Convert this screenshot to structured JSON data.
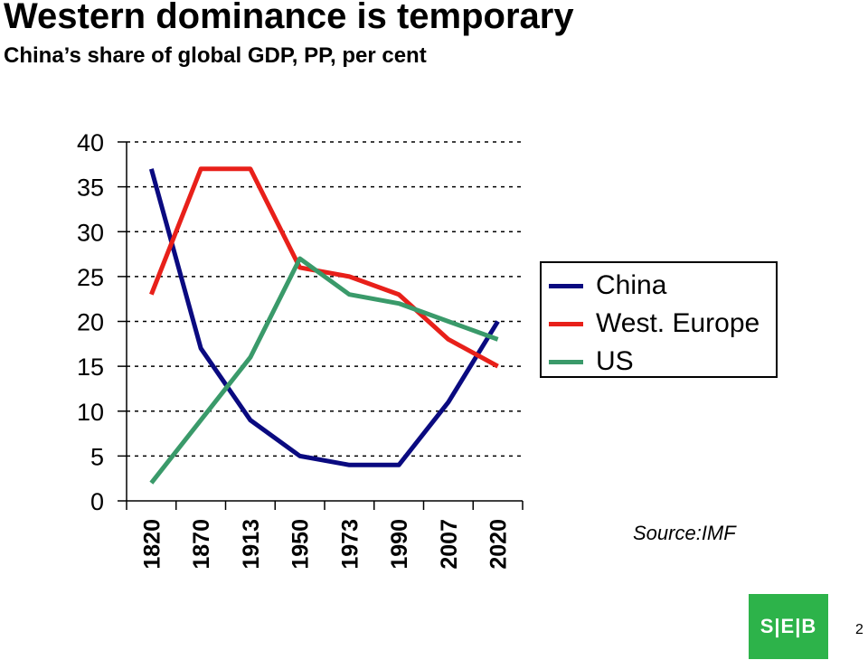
{
  "slide": {
    "title": "Western dominance is temporary",
    "subtitle": "China’s share of global GDP, PP, per cent",
    "source": "Source:IMF",
    "logo_text": "S|E|B",
    "page_number": "2",
    "logo_color": "#2db34a"
  },
  "chart_data": {
    "type": "line",
    "title": "",
    "xlabel": "",
    "ylabel": "",
    "categories": [
      "1820",
      "1870",
      "1913",
      "1950",
      "1973",
      "1990",
      "2007",
      "2020"
    ],
    "ylim": [
      0,
      40
    ],
    "yticks": [
      0,
      5,
      10,
      15,
      20,
      25,
      30,
      35,
      40
    ],
    "grid": "horizontal dashed",
    "legend_position": "right",
    "series": [
      {
        "name": "China",
        "color": "#0a0a80",
        "values": [
          37,
          17,
          9,
          5,
          4,
          4,
          11,
          20
        ]
      },
      {
        "name": "West. Europe",
        "color": "#e8201a",
        "values": [
          23,
          37,
          37,
          26,
          25,
          23,
          18,
          15
        ]
      },
      {
        "name": "US",
        "color": "#3a9a6a",
        "values": [
          2,
          9,
          16,
          27,
          23,
          22,
          20,
          18
        ]
      }
    ]
  }
}
